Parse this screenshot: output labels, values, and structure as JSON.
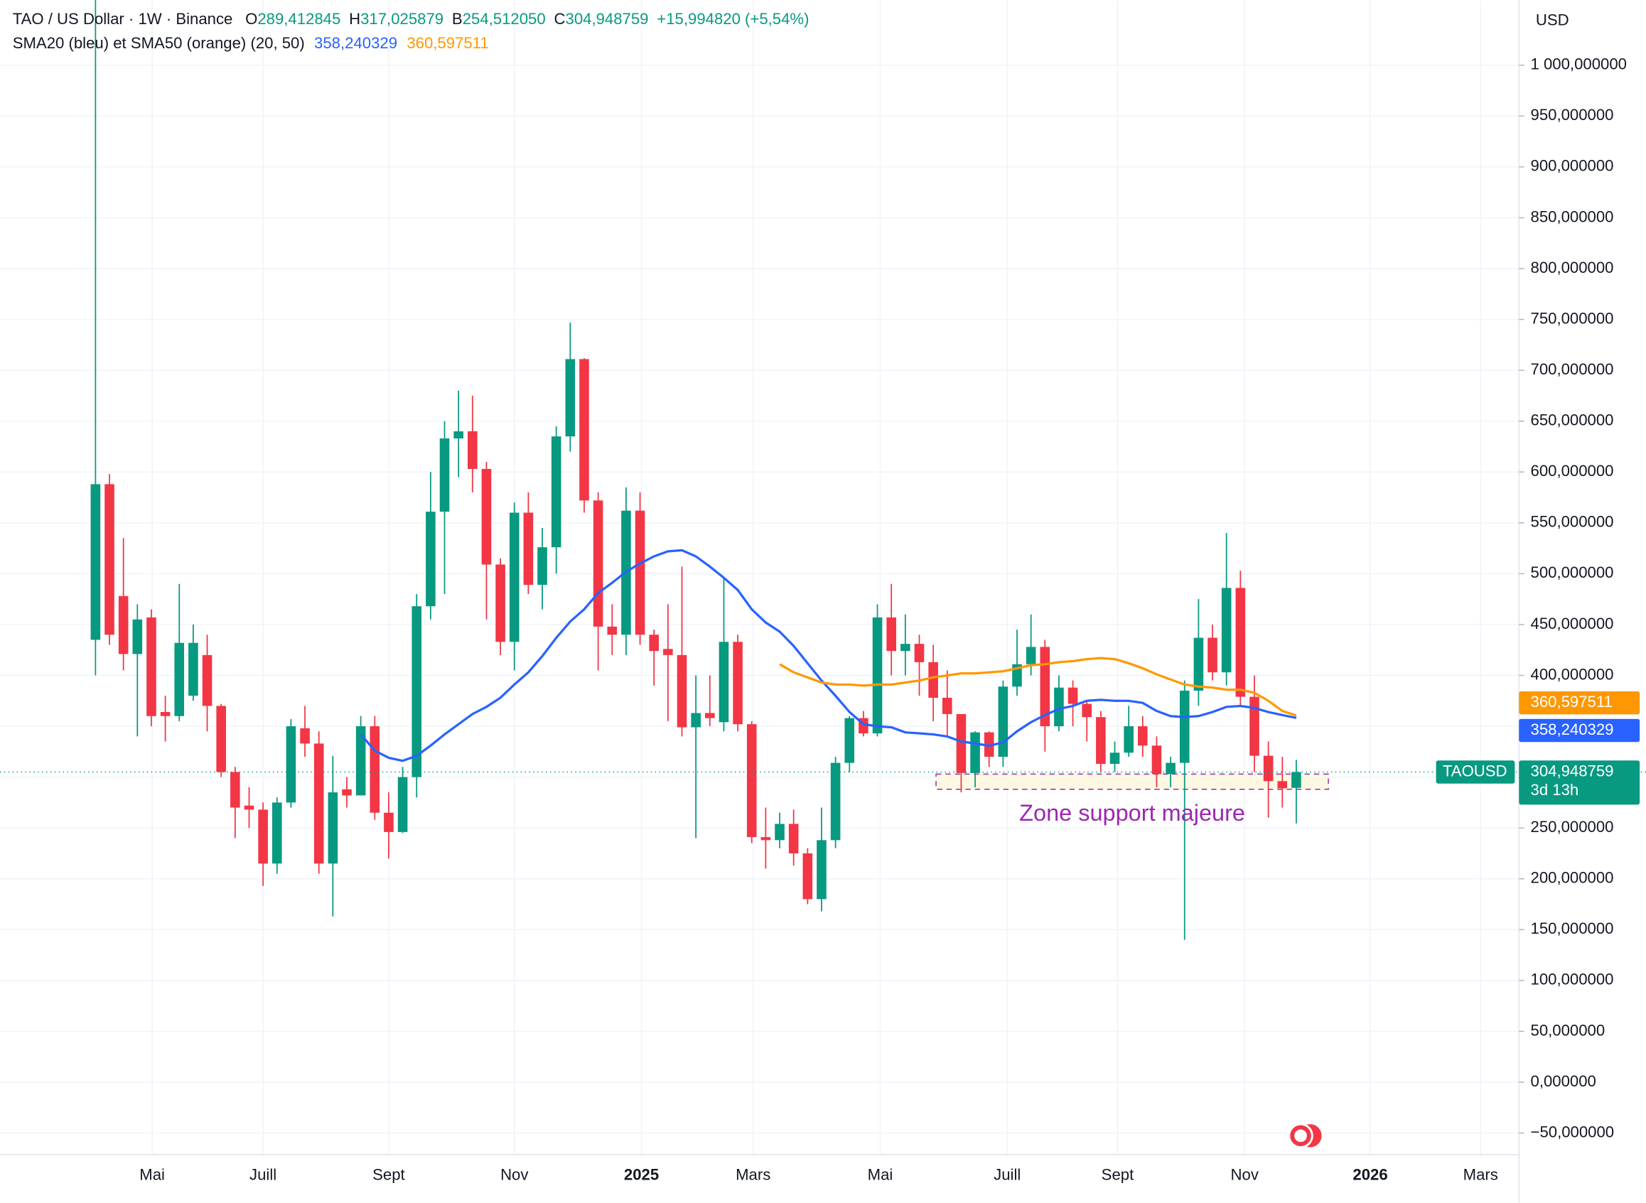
{
  "chart_data": {
    "type": "candlestick",
    "title": "TAO / US Dollar · 1W · Binance",
    "ohlc_labels": [
      {
        "key": "O",
        "label": "289,412845"
      },
      {
        "key": "H",
        "label": "317,025879"
      },
      {
        "key": "B",
        "label": "254,512050"
      },
      {
        "key": "C",
        "label": "304,948759"
      }
    ],
    "change_label": "+15,994820 (+5,54%)",
    "indicator_title": "SMA20 (bleu) et SMA50 (orange) (20, 50)",
    "currency": "USD",
    "symbol": "TAOUSD",
    "last_price_label": "304,948759",
    "countdown": "3d 13h",
    "up_color": "#089981",
    "down_color": "#f23645",
    "x": [
      0,
      1,
      2,
      3,
      4,
      5,
      6,
      7,
      8,
      9,
      10,
      11,
      12,
      13,
      14,
      15,
      16,
      17,
      18,
      19,
      20,
      21,
      22,
      23,
      24,
      25,
      26,
      27,
      28,
      29,
      30,
      31,
      32,
      33,
      34,
      35,
      36,
      37,
      38,
      39,
      40,
      41,
      42,
      43,
      44,
      45,
      46,
      47,
      48,
      49,
      50,
      51,
      52,
      53,
      54,
      55,
      56,
      57,
      58,
      59,
      60,
      61,
      62,
      63,
      64,
      65,
      66,
      67,
      68,
      69,
      70,
      71,
      72,
      73,
      74,
      75,
      76,
      77,
      78,
      79,
      80,
      81,
      82,
      83,
      84,
      85,
      86
    ],
    "open": [
      435,
      588,
      478,
      421,
      457,
      364,
      360,
      380,
      420,
      370,
      305,
      272,
      268,
      215,
      275,
      348,
      333,
      215,
      288,
      282,
      350,
      265,
      246,
      300,
      468,
      561,
      633,
      640,
      603,
      509,
      433,
      560,
      489,
      526,
      635,
      711,
      572,
      448,
      440,
      562,
      440,
      426,
      420,
      349,
      363,
      354,
      433,
      352,
      241,
      238,
      254,
      225,
      180,
      238,
      314,
      358,
      343,
      457,
      424,
      431,
      413,
      378,
      362,
      304,
      344,
      320,
      389,
      411,
      428,
      350,
      388,
      372,
      359,
      313,
      324,
      350,
      331,
      303,
      314,
      385,
      437,
      403,
      486,
      379,
      321,
      296,
      289.412845
    ],
    "high": [
      1100,
      598,
      535,
      470,
      465,
      380,
      490,
      450,
      440,
      372,
      310,
      290,
      275,
      280,
      357,
      370,
      345,
      321,
      300,
      360,
      360,
      285,
      310,
      480,
      600,
      650,
      680,
      675,
      610,
      515,
      570,
      580,
      545,
      645,
      747,
      712,
      580,
      470,
      585,
      580,
      445,
      470,
      507,
      400,
      400,
      495,
      440,
      355,
      270,
      265,
      268,
      230,
      270,
      320,
      360,
      365,
      470,
      490,
      460,
      440,
      430,
      405,
      360,
      345,
      345,
      395,
      445,
      460,
      435,
      400,
      395,
      375,
      365,
      335,
      370,
      360,
      340,
      320,
      395,
      475,
      450,
      540,
      503,
      400,
      335,
      320,
      317.025879
    ],
    "low": [
      400,
      430,
      405,
      340,
      350,
      335,
      355,
      375,
      345,
      300,
      240,
      250,
      193,
      205,
      270,
      320,
      205,
      163,
      270,
      282,
      258,
      220,
      245,
      280,
      455,
      480,
      595,
      580,
      455,
      420,
      405,
      480,
      465,
      500,
      620,
      560,
      405,
      420,
      420,
      430,
      390,
      355,
      340,
      240,
      350,
      345,
      345,
      235,
      210,
      230,
      213,
      175,
      168,
      230,
      305,
      340,
      340,
      400,
      400,
      380,
      355,
      340,
      285,
      290,
      310,
      310,
      380,
      400,
      325,
      345,
      350,
      335,
      305,
      305,
      320,
      320,
      290,
      290,
      140,
      370,
      395,
      390,
      370,
      305,
      260,
      270,
      254.51205
    ],
    "close": [
      588,
      440,
      421,
      455,
      360,
      360,
      432,
      432,
      370,
      305,
      270,
      268,
      215,
      275,
      350,
      333,
      215,
      285,
      282,
      350,
      265,
      246,
      300,
      468,
      561,
      633,
      640,
      603,
      509,
      433,
      560,
      489,
      526,
      635,
      711,
      572,
      448,
      440,
      562,
      440,
      424,
      420,
      349,
      363,
      358,
      433,
      352,
      241,
      238,
      254,
      225,
      180,
      238,
      314,
      358,
      343,
      457,
      424,
      431,
      413,
      378,
      362,
      304,
      344,
      320,
      389,
      411,
      428,
      350,
      388,
      372,
      359,
      313,
      324,
      350,
      331,
      303,
      314,
      385,
      437,
      403,
      486,
      379,
      321,
      296,
      289,
      304.948759
    ],
    "overlays": [
      {
        "color": "#2962ff",
        "last_label": "358,240329",
        "values": [
          null,
          null,
          null,
          null,
          null,
          null,
          null,
          null,
          null,
          null,
          null,
          null,
          null,
          null,
          null,
          null,
          null,
          null,
          null,
          342,
          326,
          319,
          316,
          321,
          331,
          342,
          352,
          362,
          369,
          378,
          391,
          403,
          419,
          437,
          453,
          465,
          481,
          491,
          502,
          510,
          517,
          522,
          523,
          517,
          507,
          496,
          484,
          465,
          452,
          443,
          429,
          412,
          395,
          380,
          364,
          352,
          350,
          349,
          344,
          343,
          342,
          340,
          335,
          333,
          331,
          334,
          345,
          354,
          361,
          367,
          370,
          375,
          376,
          375,
          375,
          373,
          365,
          360,
          359,
          360,
          364,
          369,
          370,
          368,
          364,
          361,
          358.240329
        ]
      },
      {
        "color": "#ff9800",
        "last_label": "360,597511",
        "values": [
          null,
          null,
          null,
          null,
          null,
          null,
          null,
          null,
          null,
          null,
          null,
          null,
          null,
          null,
          null,
          null,
          null,
          null,
          null,
          null,
          null,
          null,
          null,
          null,
          null,
          null,
          null,
          null,
          null,
          null,
          null,
          null,
          null,
          null,
          null,
          null,
          null,
          null,
          null,
          null,
          null,
          null,
          null,
          null,
          null,
          null,
          null,
          null,
          null,
          411,
          403,
          398,
          393,
          391,
          391,
          390,
          391,
          391,
          393,
          395,
          398,
          400,
          402,
          402,
          403,
          404,
          407,
          410,
          411,
          413,
          414,
          416,
          417,
          416,
          412,
          407,
          401,
          396,
          391,
          389,
          388,
          386,
          386,
          383,
          375,
          365,
          360.597511
        ]
      }
    ],
    "annotation": {
      "text": "Zone support majeure",
      "range": [
        288,
        303
      ],
      "x_range": [
        60.2,
        88.3
      ],
      "color": "#9c27b0"
    },
    "xlim": [
      -6.84,
      101.95
    ],
    "xticks": [
      {
        "value": 4.06,
        "label": "Mai"
      },
      {
        "value": 12.0,
        "label": "Juill"
      },
      {
        "value": 21.0,
        "label": "Sept"
      },
      {
        "value": 30.0,
        "label": "Nov"
      },
      {
        "value": 39.1,
        "label": "2025"
      },
      {
        "value": 47.1,
        "label": "Mars"
      },
      {
        "value": 56.2,
        "label": "Mai"
      },
      {
        "value": 65.3,
        "label": "Juill"
      },
      {
        "value": 73.2,
        "label": "Sept"
      },
      {
        "value": 82.3,
        "label": "Nov"
      },
      {
        "value": 91.3,
        "label": "2026"
      },
      {
        "value": 99.2,
        "label": "Mars"
      }
    ],
    "ylim": [
      -71.2,
      1064
    ],
    "yticks": [
      {
        "value": -50,
        "label": "−50,000000"
      },
      {
        "value": 0,
        "label": "0,000000"
      },
      {
        "value": 50,
        "label": "50,000000"
      },
      {
        "value": 100,
        "label": "100,000000"
      },
      {
        "value": 150,
        "label": "150,000000"
      },
      {
        "value": 200,
        "label": "200,000000"
      },
      {
        "value": 250,
        "label": "250,000000"
      },
      {
        "value": 300,
        "label": "300,000000"
      },
      {
        "value": 350,
        "label": "350,000000"
      },
      {
        "value": 400,
        "label": "400,000000"
      },
      {
        "value": 450,
        "label": "450,000000"
      },
      {
        "value": 500,
        "label": "500,000000"
      },
      {
        "value": 550,
        "label": "550,000000"
      },
      {
        "value": 600,
        "label": "600,000000"
      },
      {
        "value": 650,
        "label": "650,000000"
      },
      {
        "value": 700,
        "label": "700,000000"
      },
      {
        "value": 750,
        "label": "750,000000"
      },
      {
        "value": 800,
        "label": "800,000000"
      },
      {
        "value": 850,
        "label": "850,000000"
      },
      {
        "value": 900,
        "label": "900,000000"
      },
      {
        "value": 950,
        "label": "950,000000"
      },
      {
        "value": 1000,
        "label": "1 000,000000"
      }
    ],
    "grid": true
  }
}
